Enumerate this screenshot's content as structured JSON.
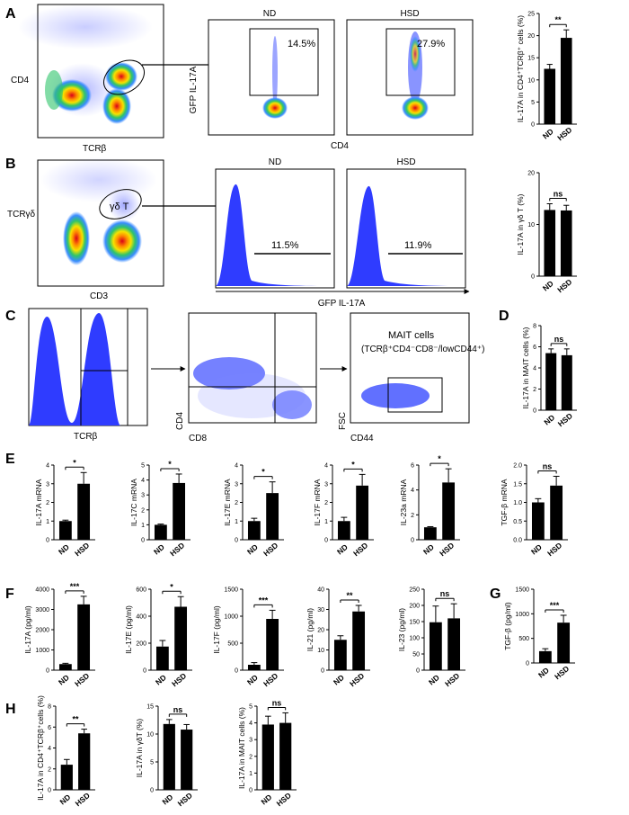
{
  "panel_labels": [
    "A",
    "B",
    "C",
    "D",
    "E",
    "F",
    "G",
    "H"
  ],
  "flow": {
    "A": {
      "y1": "CD4",
      "x1": "TCRβ",
      "y2": "GFP IL-17A",
      "x2": "CD4",
      "nd_title": "ND",
      "hsd_title": "HSD",
      "nd_pct": "14.5%",
      "hsd_pct": "27.9%"
    },
    "B": {
      "y1": "TCRγδ",
      "x1": "CD3",
      "gate": "γδ T",
      "nd_title": "ND",
      "hsd_title": "HSD",
      "nd_pct": "11.5%",
      "hsd_pct": "11.9%",
      "x2": "GFP IL-17A"
    },
    "C": {
      "x1": "TCRβ",
      "y2": "CD4",
      "x2": "CD8",
      "y3": "FSC",
      "x3": "CD44",
      "mait1": "MAIT cells",
      "mait2": "(TCRβ⁺CD4⁻CD8⁻/lowCD44⁺)"
    }
  },
  "chart_data": [
    {
      "id": "A",
      "type": "bar",
      "categories": [
        "ND",
        "HSD"
      ],
      "values": [
        12.5,
        19.5
      ],
      "errors": [
        1,
        1.8
      ],
      "ylabel": "IL-17A in CD4⁺TCRβ⁺ cells (%)",
      "ylim": [
        0,
        25
      ],
      "ticks": [
        "0",
        "5",
        "10",
        "15",
        "20",
        "25"
      ],
      "sig": "**"
    },
    {
      "id": "B",
      "type": "bar",
      "categories": [
        "ND",
        "HSD"
      ],
      "values": [
        12.8,
        12.7
      ],
      "errors": [
        1.2,
        1
      ],
      "ylabel": "IL-17A in γδ T (%)",
      "ylim": [
        0,
        20
      ],
      "ticks": [
        "0",
        "10",
        "20"
      ],
      "sig": "ns"
    },
    {
      "id": "D",
      "type": "bar",
      "categories": [
        "ND",
        "HSD"
      ],
      "values": [
        5.4,
        5.2
      ],
      "errors": [
        0.4,
        0.6
      ],
      "ylabel": "IL-17A in MAIT cells (%)",
      "ylim": [
        0,
        8
      ],
      "ticks": [
        "0",
        "2",
        "4",
        "6",
        "8"
      ],
      "sig": "ns"
    },
    {
      "id": "E1",
      "type": "bar",
      "categories": [
        "ND",
        "HSD"
      ],
      "values": [
        1,
        3
      ],
      "errors": [
        0.05,
        0.6
      ],
      "ylabel": "IL-17A mRNA",
      "ylim": [
        0,
        4
      ],
      "ticks": [
        "0",
        "1",
        "2",
        "3",
        "4"
      ],
      "sig": "*"
    },
    {
      "id": "E2",
      "type": "bar",
      "categories": [
        "ND",
        "HSD"
      ],
      "values": [
        1,
        3.8
      ],
      "errors": [
        0.05,
        0.6
      ],
      "ylabel": "IL-17C mRNA",
      "ylim": [
        0,
        5
      ],
      "ticks": [
        "0",
        "1",
        "2",
        "3",
        "4",
        "5"
      ],
      "sig": "*"
    },
    {
      "id": "E3",
      "type": "bar",
      "categories": [
        "ND",
        "HSD"
      ],
      "values": [
        1,
        2.5
      ],
      "errors": [
        0.15,
        0.6
      ],
      "ylabel": "IL-17E mRNA",
      "ylim": [
        0,
        4
      ],
      "ticks": [
        "0",
        "1",
        "2",
        "3",
        "4"
      ],
      "sig": "*"
    },
    {
      "id": "E4",
      "type": "bar",
      "categories": [
        "ND",
        "HSD"
      ],
      "values": [
        1,
        2.9
      ],
      "errors": [
        0.2,
        0.6
      ],
      "ylabel": "IL-17F mRNA",
      "ylim": [
        0,
        4
      ],
      "ticks": [
        "0",
        "1",
        "2",
        "3",
        "4"
      ],
      "sig": "*"
    },
    {
      "id": "E5",
      "type": "bar",
      "categories": [
        "ND",
        "HSD"
      ],
      "values": [
        1,
        4.6
      ],
      "errors": [
        0.05,
        1.1
      ],
      "ylabel": "IL-23a mRNA",
      "ylim": [
        0,
        6
      ],
      "ticks": [
        "0",
        "2",
        "4",
        "6"
      ],
      "sig": "*"
    },
    {
      "id": "E6",
      "type": "bar",
      "categories": [
        "ND",
        "HSD"
      ],
      "values": [
        1,
        1.45
      ],
      "errors": [
        0.1,
        0.25
      ],
      "ylabel": "TGF-β mRNA",
      "ylim": [
        0,
        2
      ],
      "ticks": [
        "0.0",
        "0.5",
        "1.0",
        "1.5",
        "2.0"
      ],
      "sig": "ns"
    },
    {
      "id": "F1",
      "type": "bar",
      "categories": [
        "ND",
        "HSD"
      ],
      "values": [
        300,
        3250
      ],
      "errors": [
        40,
        400
      ],
      "ylabel": "IL-17A (pg/ml)",
      "ylim": [
        0,
        4000
      ],
      "ticks": [
        "0",
        "1000",
        "2000",
        "3000",
        "4000"
      ],
      "sig": "***"
    },
    {
      "id": "F2",
      "type": "bar",
      "categories": [
        "ND",
        "HSD"
      ],
      "values": [
        175,
        470
      ],
      "errors": [
        45,
        75
      ],
      "ylabel": "IL-17E (pg/ml)",
      "ylim": [
        0,
        600
      ],
      "ticks": [
        "0",
        "200",
        "400",
        "600"
      ],
      "sig": "*"
    },
    {
      "id": "F3",
      "type": "bar",
      "categories": [
        "ND",
        "HSD"
      ],
      "values": [
        100,
        950
      ],
      "errors": [
        40,
        160
      ],
      "ylabel": "IL-17F (pg/ml)",
      "ylim": [
        0,
        1500
      ],
      "ticks": [
        "0",
        "500",
        "1000",
        "1500"
      ],
      "sig": "***"
    },
    {
      "id": "F4",
      "type": "bar",
      "categories": [
        "ND",
        "HSD"
      ],
      "values": [
        15,
        29
      ],
      "errors": [
        2,
        3
      ],
      "ylabel": "IL-21 (pg/ml)",
      "ylim": [
        0,
        40
      ],
      "ticks": [
        "0",
        "10",
        "20",
        "30",
        "40"
      ],
      "sig": "**"
    },
    {
      "id": "F5",
      "type": "bar",
      "categories": [
        "ND",
        "HSD"
      ],
      "values": [
        148,
        160
      ],
      "errors": [
        50,
        45
      ],
      "ylabel": "IL-23 (pg/ml)",
      "ylim": [
        0,
        250
      ],
      "ticks": [
        "0",
        "50",
        "100",
        "150",
        "200",
        "250"
      ],
      "sig": "ns"
    },
    {
      "id": "G",
      "type": "bar",
      "categories": [
        "ND",
        "HSD"
      ],
      "values": [
        240,
        820
      ],
      "errors": [
        50,
        150
      ],
      "ylabel": "TGF-β (pg/ml)",
      "ylim": [
        0,
        1500
      ],
      "ticks": [
        "0",
        "500",
        "1000",
        "1500"
      ],
      "sig": "***"
    },
    {
      "id": "H1",
      "type": "bar",
      "categories": [
        "ND",
        "HSD"
      ],
      "values": [
        2.4,
        5.4
      ],
      "errors": [
        0.5,
        0.4
      ],
      "ylabel": "IL-17A in CD4⁺TCRβ⁺cells (%)",
      "ylim": [
        0,
        8
      ],
      "ticks": [
        "0",
        "2",
        "4",
        "6",
        "8"
      ],
      "sig": "**"
    },
    {
      "id": "H2",
      "type": "bar",
      "categories": [
        "ND",
        "HSD"
      ],
      "values": [
        11.8,
        10.8
      ],
      "errors": [
        0.8,
        0.9
      ],
      "ylabel": "IL-17A in γδT (%)",
      "ylim": [
        0,
        15
      ],
      "ticks": [
        "0",
        "5",
        "10",
        "15"
      ],
      "sig": "ns"
    },
    {
      "id": "H3",
      "type": "bar",
      "categories": [
        "ND",
        "HSD"
      ],
      "values": [
        3.9,
        4.0
      ],
      "errors": [
        0.5,
        0.6
      ],
      "ylabel": "IL-17A in MAIT cells (%)",
      "ylim": [
        0,
        5
      ],
      "ticks": [
        "0",
        "1",
        "2",
        "3",
        "4",
        "5"
      ],
      "sig": "ns"
    }
  ]
}
